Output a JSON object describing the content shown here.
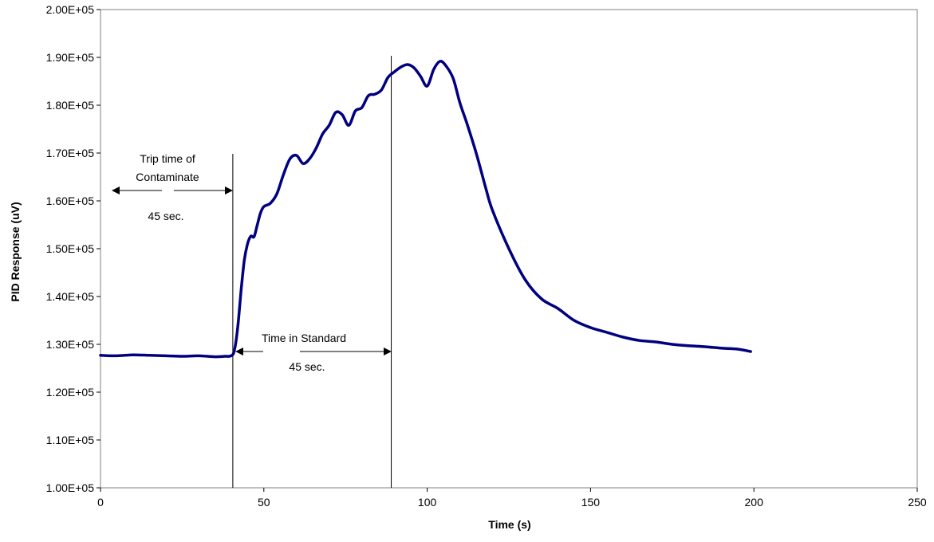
{
  "chart_data": {
    "type": "line",
    "title": "",
    "xlabel": "Time (s)",
    "ylabel": "PID Response (uV)",
    "xlim": [
      0,
      250
    ],
    "ylim": [
      100000,
      200000
    ],
    "grid": false,
    "legend": "none",
    "x_ticks": [
      0,
      50,
      100,
      150,
      200,
      250
    ],
    "x_tick_labels": [
      "0",
      "50",
      "100",
      "150",
      "200",
      "250"
    ],
    "y_ticks": [
      100000,
      110000,
      120000,
      130000,
      140000,
      150000,
      160000,
      170000,
      180000,
      190000,
      200000
    ],
    "y_tick_labels": [
      "1.00E+05",
      "1.10E+05",
      "1.20E+05",
      "1.30E+05",
      "1.40E+05",
      "1.50E+05",
      "1.60E+05",
      "1.70E+05",
      "1.80E+05",
      "1.90E+05",
      "2.00E+05"
    ],
    "series": [
      {
        "color": "#000080",
        "x": [
          0,
          5,
          10,
          15,
          20,
          25,
          30,
          35,
          38,
          40,
          41,
          42,
          43,
          44,
          45,
          46,
          47,
          48,
          49,
          50,
          52,
          54,
          56,
          58,
          60,
          62,
          64,
          66,
          68,
          70,
          72,
          74,
          76,
          78,
          80,
          82,
          84,
          86,
          88,
          90,
          92,
          94,
          96,
          98,
          100,
          102,
          104,
          106,
          108,
          110,
          112,
          115,
          118,
          120,
          125,
          130,
          135,
          140,
          145,
          150,
          155,
          160,
          165,
          170,
          175,
          180,
          185,
          190,
          195,
          199
        ],
        "y": [
          127700,
          127600,
          127800,
          127700,
          127600,
          127500,
          127600,
          127400,
          127500,
          127600,
          128800,
          133500,
          141000,
          147500,
          151000,
          152600,
          152500,
          155000,
          157500,
          158800,
          159500,
          161500,
          165500,
          168800,
          169500,
          167800,
          168800,
          171000,
          174000,
          175800,
          178500,
          178000,
          175800,
          178800,
          179500,
          182000,
          182300,
          183200,
          185800,
          187000,
          188000,
          188500,
          187800,
          186000,
          184000,
          187500,
          189200,
          188000,
          185500,
          180500,
          176500,
          170000,
          162500,
          158000,
          150000,
          143500,
          139500,
          137500,
          135000,
          133500,
          132500,
          131500,
          130800,
          130500,
          130000,
          129700,
          129500,
          129200,
          129000,
          128500
        ]
      }
    ],
    "vlines": [
      40.5,
      89
    ],
    "annotations": {
      "trip_line1": "Trip time of",
      "trip_line2": "Contaminate",
      "trip_value": "45 sec.",
      "standard_label": "Time in Standard",
      "standard_value": "45 sec."
    }
  }
}
